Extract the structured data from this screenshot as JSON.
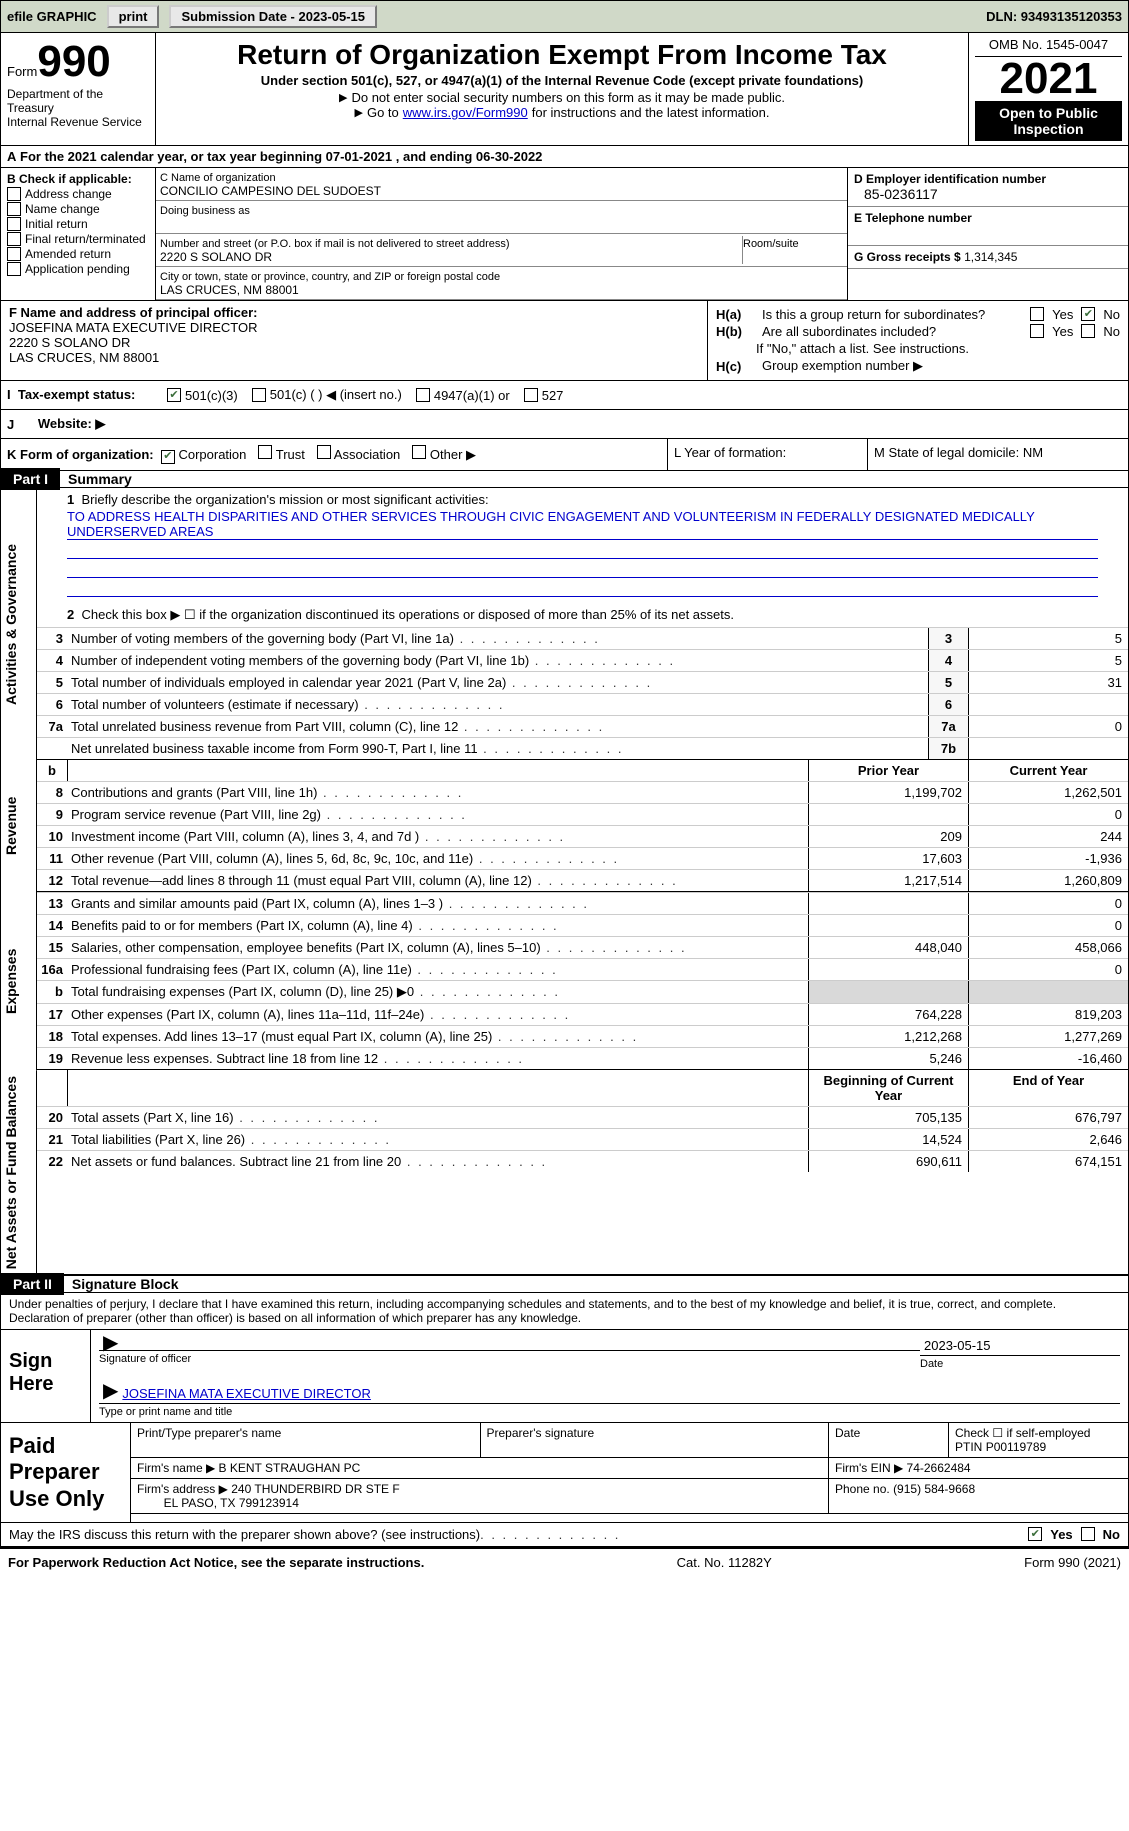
{
  "topbar": {
    "efile": "efile GRAPHIC",
    "print": "print",
    "subdate_label": "Submission Date - 2023-05-15",
    "dln": "DLN: 93493135120353"
  },
  "header": {
    "form_word": "Form",
    "form_num": "990",
    "title": "Return of Organization Exempt From Income Tax",
    "subtitle": "Under section 501(c), 527, or 4947(a)(1) of the Internal Revenue Code (except private foundations)",
    "note1": "Do not enter social security numbers on this form as it may be made public.",
    "note2a": "Go to ",
    "note2link": "www.irs.gov/Form990",
    "note2b": " for instructions and the latest information.",
    "omb": "OMB No. 1545-0047",
    "year": "2021",
    "open": "Open to Public Inspection",
    "dept": "Department of the Treasury",
    "irs": "Internal Revenue Service"
  },
  "rowA": {
    "prefix": "A",
    "text": "For the 2021 calendar year, or tax year beginning 07-01-2021   , and ending 06-30-2022"
  },
  "boxB": {
    "title": "B Check if applicable:",
    "items": [
      "Address change",
      "Name change",
      "Initial return",
      "Final return/terminated",
      "Amended return",
      "Application pending"
    ]
  },
  "boxC": {
    "name_label": "C Name of organization",
    "name": "CONCILIO CAMPESINO DEL SUDOEST",
    "dba_label": "Doing business as",
    "street_label": "Number and street (or P.O. box if mail is not delivered to street address)",
    "room_label": "Room/suite",
    "street": "2220 S SOLANO DR",
    "city_label": "City or town, state or province, country, and ZIP or foreign postal code",
    "city": "LAS CRUCES, NM  88001"
  },
  "boxD": {
    "label": "D Employer identification number",
    "value": "85-0236117"
  },
  "boxE": {
    "label": "E Telephone number",
    "value": ""
  },
  "boxG": {
    "label": "G Gross receipts $",
    "value": "1,314,345"
  },
  "boxF": {
    "label": "F  Name and address of principal officer:",
    "line1": "JOSEFINA MATA EXECUTIVE DIRECTOR",
    "line2": "2220 S SOLANO DR",
    "line3": "LAS CRUCES, NM  88001"
  },
  "boxH": {
    "a_label": "Is this a group return for subordinates?",
    "a_tag": "H(a)",
    "b_label": "Are all subordinates included?",
    "b_tag": "H(b)",
    "b_note": "If \"No,\" attach a list. See instructions.",
    "c_label": "Group exemption number ▶",
    "c_tag": "H(c)",
    "yes": "Yes",
    "no": "No"
  },
  "rowI": {
    "label": "Tax-exempt status:",
    "tag": "I",
    "opts": [
      "501(c)(3)",
      "501(c) (  ) ◀ (insert no.)",
      "4947(a)(1) or",
      "527"
    ]
  },
  "rowJ": {
    "tag": "J",
    "label": "Website: ▶"
  },
  "rowK": {
    "label": "K Form of organization:",
    "opts": [
      "Corporation",
      "Trust",
      "Association",
      "Other ▶"
    ],
    "L": "L Year of formation:",
    "M": "M State of legal domicile: NM"
  },
  "partI": {
    "tag": "Part I",
    "title": "Summary"
  },
  "summary": {
    "line1_label": "Briefly describe the organization's mission or most significant activities:",
    "mission": "TO ADDRESS HEALTH DISPARITIES AND OTHER SERVICES THROUGH CIVIC ENGAGEMENT AND VOLUNTEERISM IN FEDERALLY DESIGNATED MEDICALLY UNDERSERVED AREAS",
    "line2": "Check this box ▶ ☐ if the organization discontinued its operations or disposed of more than 25% of its net assets.",
    "lines_gov": [
      {
        "n": "3",
        "d": "Number of voting members of the governing body (Part VI, line 1a)",
        "b": "3",
        "v": "5"
      },
      {
        "n": "4",
        "d": "Number of independent voting members of the governing body (Part VI, line 1b)",
        "b": "4",
        "v": "5"
      },
      {
        "n": "5",
        "d": "Total number of individuals employed in calendar year 2021 (Part V, line 2a)",
        "b": "5",
        "v": "31"
      },
      {
        "n": "6",
        "d": "Total number of volunteers (estimate if necessary)",
        "b": "6",
        "v": ""
      },
      {
        "n": "7a",
        "d": "Total unrelated business revenue from Part VIII, column (C), line 12",
        "b": "7a",
        "v": "0"
      },
      {
        "n": "",
        "d": "Net unrelated business taxable income from Form 990-T, Part I, line 11",
        "b": "7b",
        "v": ""
      }
    ],
    "head_prior": "Prior Year",
    "head_current": "Current Year",
    "revenue": [
      {
        "n": "8",
        "d": "Contributions and grants (Part VIII, line 1h)",
        "p": "1,199,702",
        "c": "1,262,501"
      },
      {
        "n": "9",
        "d": "Program service revenue (Part VIII, line 2g)",
        "p": "",
        "c": "0"
      },
      {
        "n": "10",
        "d": "Investment income (Part VIII, column (A), lines 3, 4, and 7d )",
        "p": "209",
        "c": "244"
      },
      {
        "n": "11",
        "d": "Other revenue (Part VIII, column (A), lines 5, 6d, 8c, 9c, 10c, and 11e)",
        "p": "17,603",
        "c": "-1,936"
      },
      {
        "n": "12",
        "d": "Total revenue—add lines 8 through 11 (must equal Part VIII, column (A), line 12)",
        "p": "1,217,514",
        "c": "1,260,809"
      }
    ],
    "expenses": [
      {
        "n": "13",
        "d": "Grants and similar amounts paid (Part IX, column (A), lines 1–3 )",
        "p": "",
        "c": "0"
      },
      {
        "n": "14",
        "d": "Benefits paid to or for members (Part IX, column (A), line 4)",
        "p": "",
        "c": "0"
      },
      {
        "n": "15",
        "d": "Salaries, other compensation, employee benefits (Part IX, column (A), lines 5–10)",
        "p": "448,040",
        "c": "458,066"
      },
      {
        "n": "16a",
        "d": "Professional fundraising fees (Part IX, column (A), line 11e)",
        "p": "",
        "c": "0"
      },
      {
        "n": "b",
        "d": "Total fundraising expenses (Part IX, column (D), line 25) ▶0",
        "p": "SHADE",
        "c": "SHADE"
      },
      {
        "n": "17",
        "d": "Other expenses (Part IX, column (A), lines 11a–11d, 11f–24e)",
        "p": "764,228",
        "c": "819,203"
      },
      {
        "n": "18",
        "d": "Total expenses. Add lines 13–17 (must equal Part IX, column (A), line 25)",
        "p": "1,212,268",
        "c": "1,277,269"
      },
      {
        "n": "19",
        "d": "Revenue less expenses. Subtract line 18 from line 12",
        "p": "5,246",
        "c": "-16,460"
      }
    ],
    "head_begin": "Beginning of Current Year",
    "head_end": "End of Year",
    "netassets": [
      {
        "n": "20",
        "d": "Total assets (Part X, line 16)",
        "p": "705,135",
        "c": "676,797"
      },
      {
        "n": "21",
        "d": "Total liabilities (Part X, line 26)",
        "p": "14,524",
        "c": "2,646"
      },
      {
        "n": "22",
        "d": "Net assets or fund balances. Subtract line 21 from line 20",
        "p": "690,611",
        "c": "674,151"
      }
    ]
  },
  "vtabs": {
    "gov": "Activities & Governance",
    "rev": "Revenue",
    "exp": "Expenses",
    "net": "Net Assets or Fund Balances"
  },
  "partII": {
    "tag": "Part II",
    "title": "Signature Block"
  },
  "sig": {
    "decl": "Under penalties of perjury, I declare that I have examined this return, including accompanying schedules and statements, and to the best of my knowledge and belief, it is true, correct, and complete. Declaration of preparer (other than officer) is based on all information of which preparer has any knowledge.",
    "sign_here": "Sign Here",
    "sig_officer": "Signature of officer",
    "date": "Date",
    "date_val": "2023-05-15",
    "name": "JOSEFINA MATA  EXECUTIVE DIRECTOR",
    "type_name": "Type or print name and title"
  },
  "preparer": {
    "left": "Paid Preparer Use Only",
    "h1": "Print/Type preparer's name",
    "h2": "Preparer's signature",
    "h3": "Date",
    "h4a": "Check ☐ if self-employed",
    "h4b": "PTIN",
    "ptin": "P00119789",
    "firm_label": "Firm's name   ▶",
    "firm": "B KENT STRAUGHAN PC",
    "ein_label": "Firm's EIN ▶",
    "ein": "74-2662484",
    "addr_label": "Firm's address ▶",
    "addr1": "240 THUNDERBIRD DR STE F",
    "addr2": "EL PASO, TX  799123914",
    "phone_label": "Phone no.",
    "phone": "(915) 584-9668"
  },
  "footer_irs": {
    "text": "May the IRS discuss this return with the preparer shown above? (see instructions)",
    "yes": "Yes",
    "no": "No"
  },
  "bottom": {
    "left": "For Paperwork Reduction Act Notice, see the separate instructions.",
    "mid": "Cat. No. 11282Y",
    "right": "Form 990 (2021)"
  },
  "colors": {
    "topbar_bg": "#d0d9c8",
    "link": "#0000cc",
    "check_green": "#3b6e3b",
    "shade": "#d9d9d9"
  }
}
